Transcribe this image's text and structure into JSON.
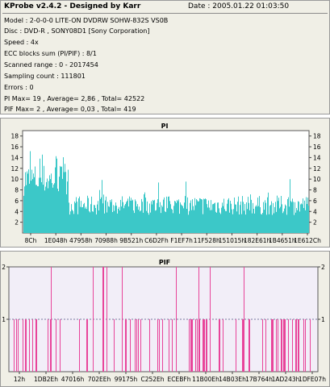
{
  "header": {
    "title": "KProbe v2.4.2 - Designed by Karr",
    "date": "Date : 2005.01.22 01:03:50"
  },
  "info_lines": [
    "Model : 2-0-0-0 LITE-ON DVDRW SOHW-832S  VS0B",
    "Disc : DVD-R , SONY08D1 [Sony Corporation]",
    "Speed : 4x",
    "ECC blocks sum (PI/PIF) : 8/1",
    "Scanned range : 0 - 2017454",
    "Sampling count : 111801",
    "Errors : 0",
    "PI Max= 19 , Average= 2,86 , Total= 42522",
    "PIF Max= 2 , Average= 0,03 , Total= 419"
  ],
  "colors": {
    "pi_fill": "#3cc8c8",
    "pif_line": "#e8449a",
    "title_text": "#000080",
    "pi_bg": "#ffffff",
    "pif_bg": "#f2eef8"
  },
  "chart_data": [
    {
      "type": "area",
      "title": "PI",
      "ylim": [
        0,
        19
      ],
      "y_ticks": [
        2,
        4,
        6,
        8,
        10,
        12,
        14,
        16,
        18
      ],
      "x_ticks": [
        "8Ch",
        "1E048h",
        "47958h",
        "70988h",
        "9B521h",
        "C6D2Fh",
        "F1EF7h",
        "11F528h",
        "151015h",
        "182E61h",
        "1B4651h",
        "1E612Ch"
      ],
      "grid": false,
      "max": 19,
      "average": 2.86,
      "total": 42522
    },
    {
      "type": "line",
      "title": "PIF",
      "ylim": [
        0,
        2
      ],
      "y_ticks": [
        1,
        2
      ],
      "x_ticks": [
        "12h",
        "1DB2Eh",
        "47016h",
        "702EEh",
        "99175h",
        "C252Eh",
        "ECEBFh",
        "11B00Eh",
        "14B03Eh",
        "17B764h",
        "1AD243h",
        "1DFE07h"
      ],
      "grid": true,
      "max": 2,
      "average": 0.03,
      "total": 419
    }
  ]
}
